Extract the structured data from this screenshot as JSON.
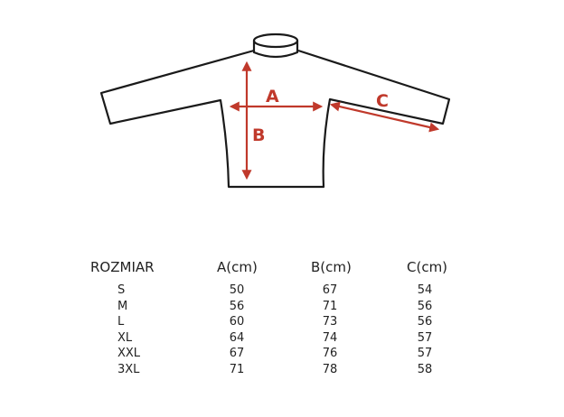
{
  "diagram": {
    "labels": {
      "a": "A",
      "b": "B",
      "c": "C"
    },
    "colors": {
      "outline": "#1a1a1a",
      "arrow": "#c0392b"
    }
  },
  "table": {
    "headers": [
      "ROZMIAR",
      "A(cm)",
      "B(cm)",
      "C(cm)"
    ],
    "rows": [
      [
        "S",
        "50",
        "67",
        "54"
      ],
      [
        "M",
        "56",
        "71",
        "56"
      ],
      [
        "L",
        "60",
        "73",
        "56"
      ],
      [
        "XL",
        "64",
        "74",
        "57"
      ],
      [
        "XXL",
        "67",
        "76",
        "57"
      ],
      [
        "3XL",
        "71",
        "78",
        "58"
      ]
    ]
  }
}
